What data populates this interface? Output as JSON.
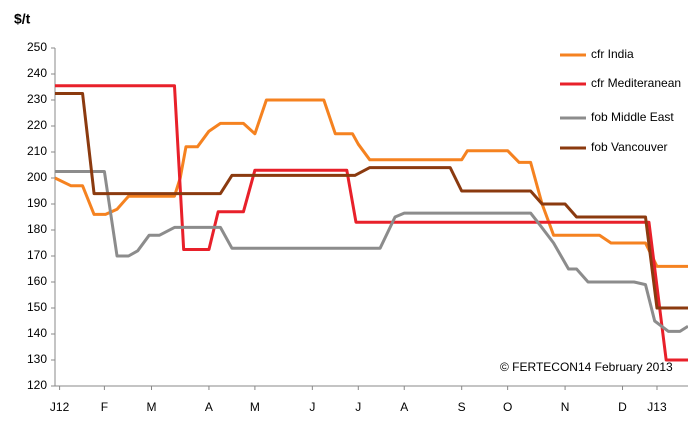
{
  "chart_data": {
    "type": "line",
    "y_axis_label": "$/t",
    "annotation": "© FERTECON14 February 2013",
    "xlim": [
      -0.4,
      54.7
    ],
    "xticks": [
      {
        "value": 0,
        "label": "J12"
      },
      {
        "value": 3.9,
        "label": "F"
      },
      {
        "value": 8,
        "label": "M"
      },
      {
        "value": 13,
        "label": "A"
      },
      {
        "value": 17,
        "label": "M"
      },
      {
        "value": 22,
        "label": "J"
      },
      {
        "value": 26,
        "label": "J"
      },
      {
        "value": 30,
        "label": "A"
      },
      {
        "value": 35,
        "label": "S"
      },
      {
        "value": 39,
        "label": "O"
      },
      {
        "value": 44,
        "label": "N"
      },
      {
        "value": 49,
        "label": "D"
      },
      {
        "value": 52,
        "label": "J13"
      }
    ],
    "ylim": [
      120,
      250
    ],
    "yticks": [
      120,
      130,
      140,
      150,
      160,
      170,
      180,
      190,
      200,
      210,
      220,
      230,
      240,
      250
    ],
    "grid": false,
    "legend": "top-right",
    "series": [
      {
        "name": "cfr India",
        "color": "#f58220",
        "x": [
          -0.4,
          1,
          2,
          3,
          4,
          5,
          6,
          10,
          10.5,
          11,
          12,
          13,
          14,
          16,
          17,
          18,
          23,
          24,
          25.5,
          26,
          27,
          35,
          35.5,
          39,
          40,
          41,
          42,
          43,
          47,
          48,
          51,
          52,
          54.7
        ],
        "values": [
          200,
          197,
          197,
          186,
          186,
          188,
          193,
          193,
          200,
          212,
          212,
          218,
          221,
          221,
          217,
          230,
          230,
          217,
          217,
          213,
          207,
          207,
          210.5,
          210.5,
          206,
          206,
          190,
          178,
          178,
          175,
          175,
          166,
          166
        ]
      },
      {
        "name": "cfr Mediteranean",
        "color": "#e8202a",
        "x": [
          -0.4,
          10,
          10.8,
          13,
          13.8,
          16,
          17,
          25,
          25.8,
          51.3,
          52.8,
          54.7
        ],
        "values": [
          235.5,
          235.5,
          172.5,
          172.5,
          187,
          187,
          203,
          203,
          183,
          183,
          130,
          130
        ]
      },
      {
        "name": "fob Middle East",
        "color": "#8c8c8c",
        "x": [
          -0.4,
          3.9,
          5,
          6,
          6.8,
          7.8,
          8.7,
          10,
          14,
          15,
          27.9,
          29.2,
          30,
          41,
          41.8,
          43,
          44.3,
          45,
          46,
          50,
          51,
          51.8,
          53,
          54,
          54.7
        ],
        "values": [
          202.5,
          202.5,
          170,
          170,
          172,
          178,
          178,
          181,
          181,
          173,
          173,
          185,
          186.5,
          186.5,
          182,
          175,
          165,
          165,
          160,
          160,
          159,
          145,
          141,
          141,
          143
        ]
      },
      {
        "name": "fob Vancouver",
        "color": "#8b3a0f",
        "x": [
          -0.4,
          2,
          3,
          14,
          15,
          25.7,
          27,
          34,
          35,
          41,
          42,
          44,
          45,
          51,
          52,
          54.7
        ],
        "values": [
          232.5,
          232.5,
          194,
          194,
          201,
          201,
          204,
          204,
          195,
          195,
          190,
          190,
          185,
          185,
          150,
          150
        ]
      }
    ]
  }
}
